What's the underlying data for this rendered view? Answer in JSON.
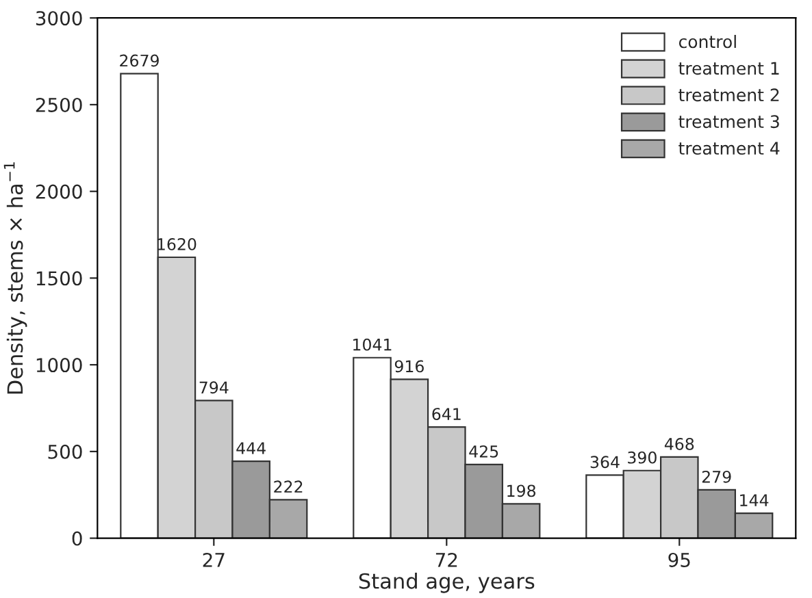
{
  "chart_data": {
    "type": "bar",
    "xlabel": "Stand age, years",
    "ylabel": "Density, stems × ha$^{−1}$",
    "categories": [
      "27",
      "72",
      "95"
    ],
    "series": [
      {
        "name": "control",
        "color": "#ffffff",
        "values": [
          2679,
          1041,
          364
        ]
      },
      {
        "name": "treatment 1",
        "color": "#d3d3d3",
        "values": [
          1620,
          916,
          390
        ]
      },
      {
        "name": "treatment 2",
        "color": "#c8c8c8",
        "values": [
          794,
          641,
          468
        ]
      },
      {
        "name": "treatment 3",
        "color": "#9a9a9a",
        "values": [
          444,
          425,
          279
        ]
      },
      {
        "name": "treatment 4",
        "color": "#a8a8a8",
        "values": [
          222,
          198,
          144
        ]
      }
    ],
    "ylim": [
      0,
      3000
    ],
    "yticks": [
      0,
      500,
      1000,
      1500,
      2000,
      2500,
      3000
    ],
    "data_labels": true,
    "legend": "top right",
    "grid": false
  }
}
